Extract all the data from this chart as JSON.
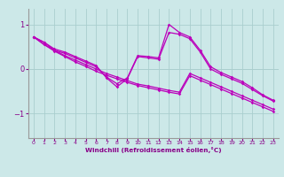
{
  "background_color": "#cce8e8",
  "grid_color": "#aacece",
  "line_color": "#bb00bb",
  "xlim": [
    -0.5,
    23.5
  ],
  "ylim": [
    -1.55,
    1.35
  ],
  "xlabel": "Windchill (Refroidissement éolien,°C)",
  "yticks": [
    -1,
    0,
    1
  ],
  "xticks": [
    0,
    1,
    2,
    3,
    4,
    5,
    6,
    7,
    8,
    9,
    10,
    11,
    12,
    13,
    14,
    15,
    16,
    17,
    18,
    19,
    20,
    21,
    22,
    23
  ],
  "series": [
    [
      0.72,
      0.6,
      0.42,
      0.3,
      0.2,
      0.1,
      0.0,
      -0.1,
      -0.18,
      -0.26,
      -0.34,
      -0.38,
      -0.43,
      -0.48,
      -0.52,
      -0.1,
      -0.2,
      -0.3,
      -0.4,
      -0.5,
      -0.6,
      -0.7,
      -0.8,
      -0.9
    ],
    [
      0.72,
      0.55,
      0.4,
      0.28,
      0.16,
      0.06,
      -0.05,
      -0.14,
      -0.22,
      -0.3,
      -0.37,
      -0.42,
      -0.47,
      -0.52,
      -0.56,
      -0.15,
      -0.25,
      -0.35,
      -0.45,
      -0.55,
      -0.65,
      -0.75,
      -0.85,
      -0.95
    ],
    [
      0.72,
      0.55,
      0.42,
      0.35,
      0.25,
      0.15,
      0.05,
      -0.18,
      -0.33,
      -0.2,
      0.3,
      0.28,
      0.25,
      1.0,
      0.82,
      0.72,
      0.42,
      0.05,
      -0.08,
      -0.18,
      -0.28,
      -0.42,
      -0.58,
      -0.7
    ],
    [
      0.72,
      0.6,
      0.45,
      0.38,
      0.28,
      0.18,
      0.08,
      -0.2,
      -0.4,
      -0.22,
      0.28,
      0.25,
      0.22,
      0.82,
      0.78,
      0.68,
      0.38,
      0.0,
      -0.12,
      -0.22,
      -0.32,
      -0.46,
      -0.6,
      -0.72
    ]
  ]
}
